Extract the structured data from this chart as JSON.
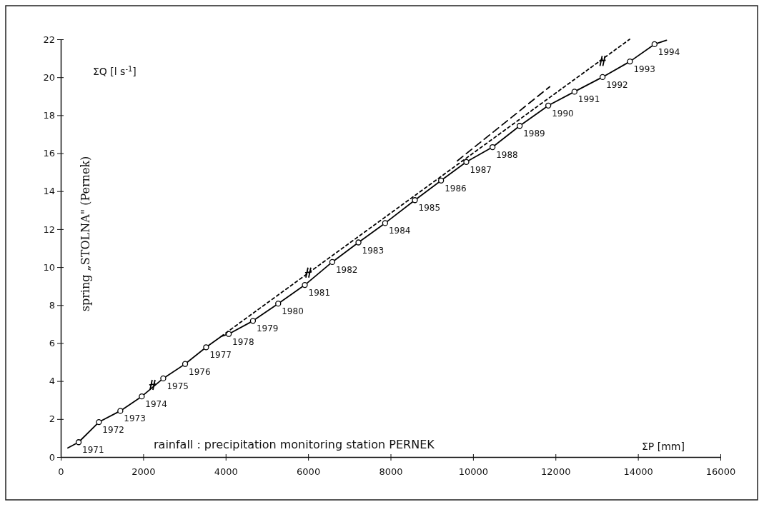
{
  "chart_data": {
    "type": "line",
    "xlabel": "rainfall : precipitation monitoring station PERNEK",
    "ylabel": "spring „STOLNA\" (Pernek)",
    "xlim": [
      0,
      16000
    ],
    "ylim": [
      0,
      22
    ],
    "xticks": [
      0,
      2000,
      4000,
      6000,
      8000,
      10000,
      12000,
      14000,
      16000
    ],
    "yticks": [
      0,
      2,
      4,
      6,
      8,
      10,
      12,
      14,
      16,
      18,
      20,
      22
    ],
    "grid": false,
    "series": [
      {
        "color": "#000000",
        "line_style": "solid",
        "marker": "none",
        "x": [
          173,
          434,
          925,
          1445,
          1965,
          2486,
          3017,
          3526,
          3890,
          4075,
          4662,
          5274,
          5920,
          6586,
          7221,
          7868,
          8590,
          9225,
          9837,
          10473,
          11132,
          11825,
          12461,
          13142,
          13806,
          14402,
          14691
        ],
        "values": [
          0.48,
          0.78,
          1.84,
          2.43,
          3.19,
          4.14,
          4.9,
          5.78,
          6.35,
          6.48,
          7.17,
          8.08,
          9.06,
          10.27,
          11.3,
          12.32,
          13.53,
          14.56,
          15.54,
          16.32,
          17.44,
          18.51,
          19.24,
          20.01,
          20.83,
          21.74,
          21.95
        ]
      },
      {
        "type": "scatter",
        "color": "#000000",
        "marker": "circle",
        "x": [
          434,
          925,
          1445,
          1965,
          2486,
          3017,
          3526,
          4075,
          4662,
          5274,
          5920,
          6586,
          7221,
          7868,
          8590,
          9225,
          9837,
          10473,
          11132,
          11825,
          12461,
          13142,
          13806,
          14402
        ],
        "values": [
          0.78,
          1.84,
          2.43,
          3.19,
          4.14,
          4.9,
          5.78,
          6.48,
          7.17,
          8.08,
          9.06,
          10.27,
          11.3,
          12.32,
          13.53,
          14.56,
          15.54,
          16.32,
          17.44,
          18.51,
          19.24,
          20.01,
          20.83,
          21.74
        ]
      },
      {
        "color": "#000000",
        "line_style": "dotted",
        "marker": "none",
        "x": [
          3890,
          13800
        ],
        "values": [
          6.35,
          22
        ]
      },
      {
        "color": "#000000",
        "line_style": "dashed",
        "marker": "none",
        "x": [
          9620,
          11860
        ],
        "values": [
          15.6,
          19.5
        ]
      },
      {
        "type": "scatter",
        "color": "#000000",
        "marker": "cross",
        "x": [
          2200,
          5979,
          13114
        ],
        "values": [
          3.8,
          9.71,
          20.86
        ]
      }
    ],
    "annotations": [
      {
        "text": "1971",
        "x": 434,
        "y": 0.78
      },
      {
        "text": "1972",
        "x": 925,
        "y": 1.84
      },
      {
        "text": "1973",
        "x": 1445,
        "y": 2.43
      },
      {
        "text": "1974",
        "x": 1965,
        "y": 3.19
      },
      {
        "text": "1975",
        "x": 2486,
        "y": 4.14
      },
      {
        "text": "1976",
        "x": 3017,
        "y": 4.9
      },
      {
        "text": "1977",
        "x": 3526,
        "y": 5.78
      },
      {
        "text": "1978",
        "x": 4075,
        "y": 6.48
      },
      {
        "text": "1979",
        "x": 4662,
        "y": 7.17
      },
      {
        "text": "1980",
        "x": 5274,
        "y": 8.08
      },
      {
        "text": "1981",
        "x": 5920,
        "y": 9.06
      },
      {
        "text": "1982",
        "x": 6586,
        "y": 10.27
      },
      {
        "text": "1983",
        "x": 7221,
        "y": 11.3
      },
      {
        "text": "1984",
        "x": 7868,
        "y": 12.32
      },
      {
        "text": "1985",
        "x": 8590,
        "y": 13.53
      },
      {
        "text": "1986",
        "x": 9225,
        "y": 14.56
      },
      {
        "text": "1987",
        "x": 9837,
        "y": 15.54
      },
      {
        "text": "1988",
        "x": 10473,
        "y": 16.32
      },
      {
        "text": "1989",
        "x": 11132,
        "y": 17.44
      },
      {
        "text": "1990",
        "x": 11825,
        "y": 18.51
      },
      {
        "text": "1991",
        "x": 12461,
        "y": 19.24
      },
      {
        "text": "1992",
        "x": 13142,
        "y": 20.01
      },
      {
        "text": "1993",
        "x": 13806,
        "y": 20.83
      },
      {
        "text": "1994",
        "x": 14402,
        "y": 21.74
      },
      "ΣQ [l s$^{-1}$]",
      "ΣP [mm]"
    ]
  }
}
